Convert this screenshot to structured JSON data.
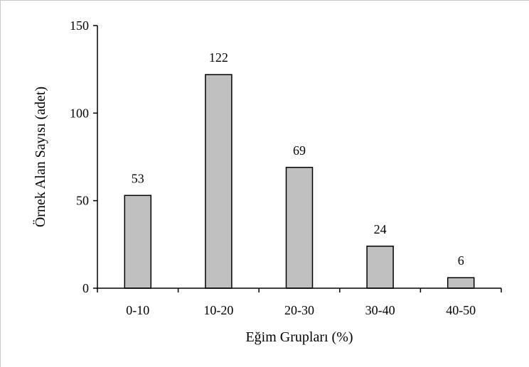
{
  "chart_data": {
    "type": "bar",
    "categories": [
      "0-10",
      "10-20",
      "20-30",
      "30-40",
      "40-50"
    ],
    "values": [
      53,
      122,
      69,
      24,
      6
    ],
    "data_labels": [
      "53",
      "122",
      "69",
      "24",
      "6"
    ],
    "title": "",
    "xlabel": "Eğim Grupları (%)",
    "ylabel": "Örnek Alan Sayısı (adet)",
    "ylim": [
      0,
      150
    ],
    "yticks": [
      0,
      50,
      100,
      150
    ],
    "ytick_labels": [
      "0",
      "50",
      "100",
      "150"
    ],
    "grid": false,
    "legend": "none",
    "colors": {
      "bar_fill": "#c0c0c0",
      "bar_stroke": "#000000",
      "axis": "#000000",
      "frame": "#c8c8c8"
    }
  }
}
